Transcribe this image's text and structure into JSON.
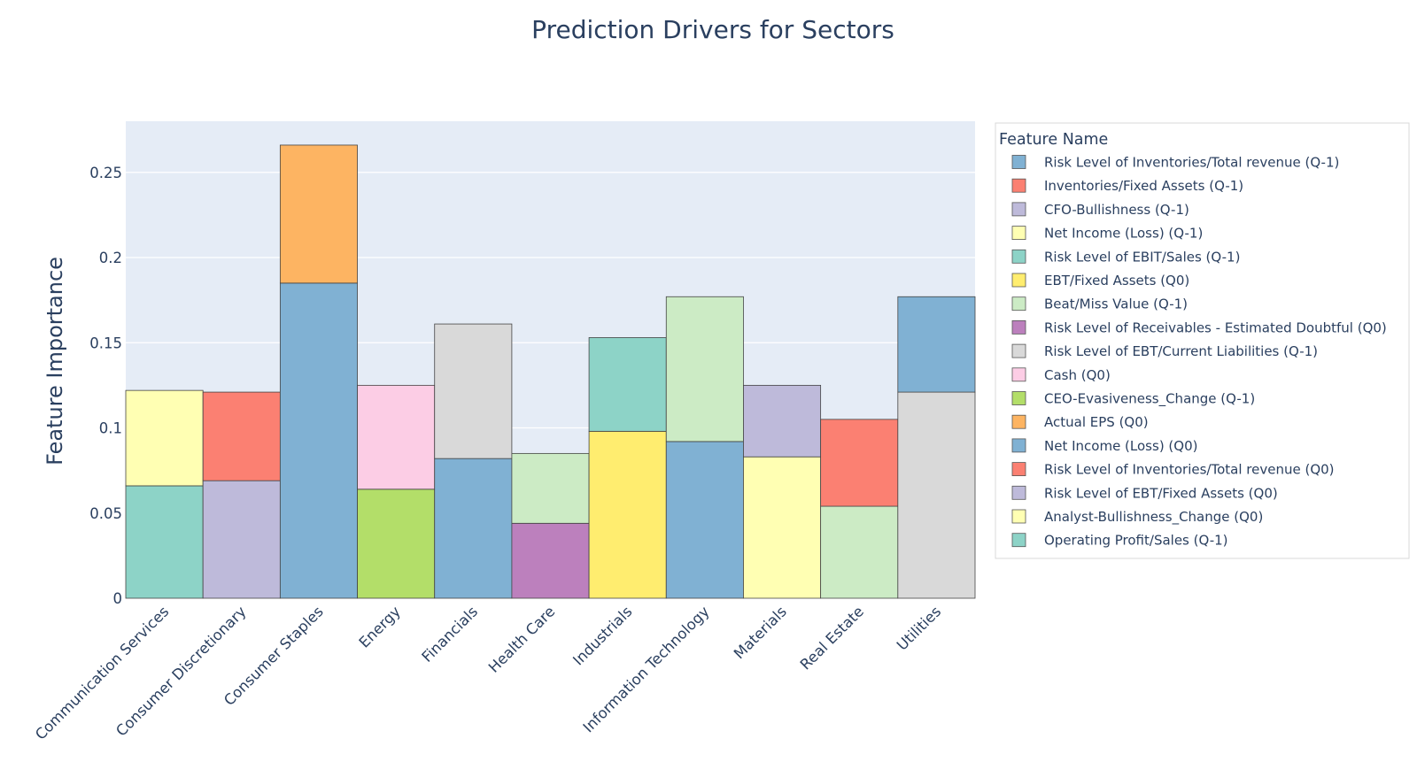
{
  "chart_data": {
    "type": "bar",
    "barmode": "stack",
    "title": "Prediction Drivers for Sectors",
    "xlabel": "",
    "ylabel": "Feature Importance",
    "ylim": [
      0,
      0.28
    ],
    "yticks": [
      0,
      0.05,
      0.1,
      0.15,
      0.2,
      0.25
    ],
    "ytick_labels": [
      "0",
      "0.05",
      "0.1",
      "0.15",
      "0.2",
      "0.25"
    ],
    "grid": true,
    "legend": {
      "title": "Feature Name",
      "placement": "right"
    },
    "categories": [
      "Communication Services",
      "Consumer Discretionary",
      "Consumer Staples",
      "Energy",
      "Financials",
      "Health Care",
      "Industrials",
      "Information Technology",
      "Materials",
      "Real Estate",
      "Utilities"
    ],
    "series": [
      {
        "name": "Risk Level of Inventories/Total revenue (Q-1)",
        "color": "#80b1d3",
        "values": [
          0,
          0,
          0.185,
          0,
          0.082,
          0,
          0,
          0.092,
          0,
          0,
          0
        ]
      },
      {
        "name": "Inventories/Fixed Assets (Q-1)",
        "color": "#fb8072",
        "values": [
          0,
          0.052,
          0,
          0,
          0,
          0,
          0,
          0,
          0,
          0,
          0
        ]
      },
      {
        "name": "CFO-Bullishness (Q-1)",
        "color": "#bebada",
        "values": [
          0,
          0.069,
          0,
          0,
          0,
          0,
          0,
          0,
          0,
          0,
          0
        ]
      },
      {
        "name": "Net Income (Loss) (Q-1)",
        "color": "#ffffb3",
        "values": [
          0.056,
          0,
          0,
          0,
          0,
          0,
          0,
          0,
          0,
          0,
          0
        ]
      },
      {
        "name": "Risk Level of EBIT/Sales (Q-1)",
        "color": "#8dd3c7",
        "values": [
          0,
          0,
          0,
          0,
          0,
          0,
          0.055,
          0,
          0,
          0,
          0
        ]
      },
      {
        "name": "EBT/Fixed Assets (Q0)",
        "color": "#ffed6f",
        "values": [
          0,
          0,
          0,
          0,
          0,
          0,
          0.098,
          0,
          0,
          0,
          0
        ]
      },
      {
        "name": "Beat/Miss Value (Q-1)",
        "color": "#ccebc5",
        "values": [
          0,
          0,
          0,
          0,
          0,
          0.041,
          0,
          0.085,
          0,
          0.054,
          0
        ]
      },
      {
        "name": "Risk Level of Receivables - Estimated Doubtful (Q0)",
        "color": "#bc80bd",
        "values": [
          0,
          0,
          0,
          0,
          0,
          0.044,
          0,
          0,
          0,
          0,
          0
        ]
      },
      {
        "name": "Risk Level of EBT/Current Liabilities (Q-1)",
        "color": "#d9d9d9",
        "values": [
          0,
          0,
          0,
          0,
          0.079,
          0,
          0,
          0,
          0,
          0,
          0.121
        ]
      },
      {
        "name": "Cash (Q0)",
        "color": "#fccde5",
        "values": [
          0,
          0,
          0,
          0.061,
          0,
          0,
          0,
          0,
          0,
          0,
          0
        ]
      },
      {
        "name": "CEO-Evasiveness_Change (Q-1)",
        "color": "#b3de69",
        "values": [
          0,
          0,
          0,
          0.064,
          0,
          0,
          0,
          0,
          0,
          0,
          0
        ]
      },
      {
        "name": "Actual EPS (Q0)",
        "color": "#fdb462",
        "values": [
          0,
          0,
          0.081,
          0,
          0,
          0,
          0,
          0,
          0,
          0,
          0
        ]
      },
      {
        "name": "Net Income (Loss) (Q0)",
        "color": "#80b1d3",
        "values": [
          0,
          0,
          0,
          0,
          0,
          0,
          0,
          0,
          0,
          0,
          0.056
        ]
      },
      {
        "name": "Risk Level of Inventories/Total revenue (Q0)",
        "color": "#fb8072",
        "values": [
          0,
          0,
          0,
          0,
          0,
          0,
          0,
          0,
          0,
          0.051,
          0
        ]
      },
      {
        "name": "Risk Level of EBT/Fixed Assets (Q0)",
        "color": "#bebada",
        "values": [
          0,
          0,
          0,
          0,
          0,
          0,
          0,
          0,
          0.042,
          0,
          0
        ]
      },
      {
        "name": "Analyst-Bullishness_Change (Q0)",
        "color": "#ffffb3",
        "values": [
          0,
          0,
          0,
          0,
          0,
          0,
          0,
          0,
          0.083,
          0,
          0
        ]
      },
      {
        "name": "Operating Profit/Sales (Q-1)",
        "color": "#8dd3c7",
        "values": [
          0.066,
          0,
          0,
          0,
          0,
          0,
          0,
          0,
          0,
          0,
          0
        ]
      }
    ],
    "stack_order": [
      [
        16,
        3
      ],
      [
        2,
        1
      ],
      [
        0,
        11
      ],
      [
        10,
        9
      ],
      [
        0,
        8
      ],
      [
        7,
        6
      ],
      [
        5,
        4
      ],
      [
        0,
        6
      ],
      [
        15,
        14
      ],
      [
        6,
        13
      ],
      [
        8,
        12
      ]
    ]
  }
}
